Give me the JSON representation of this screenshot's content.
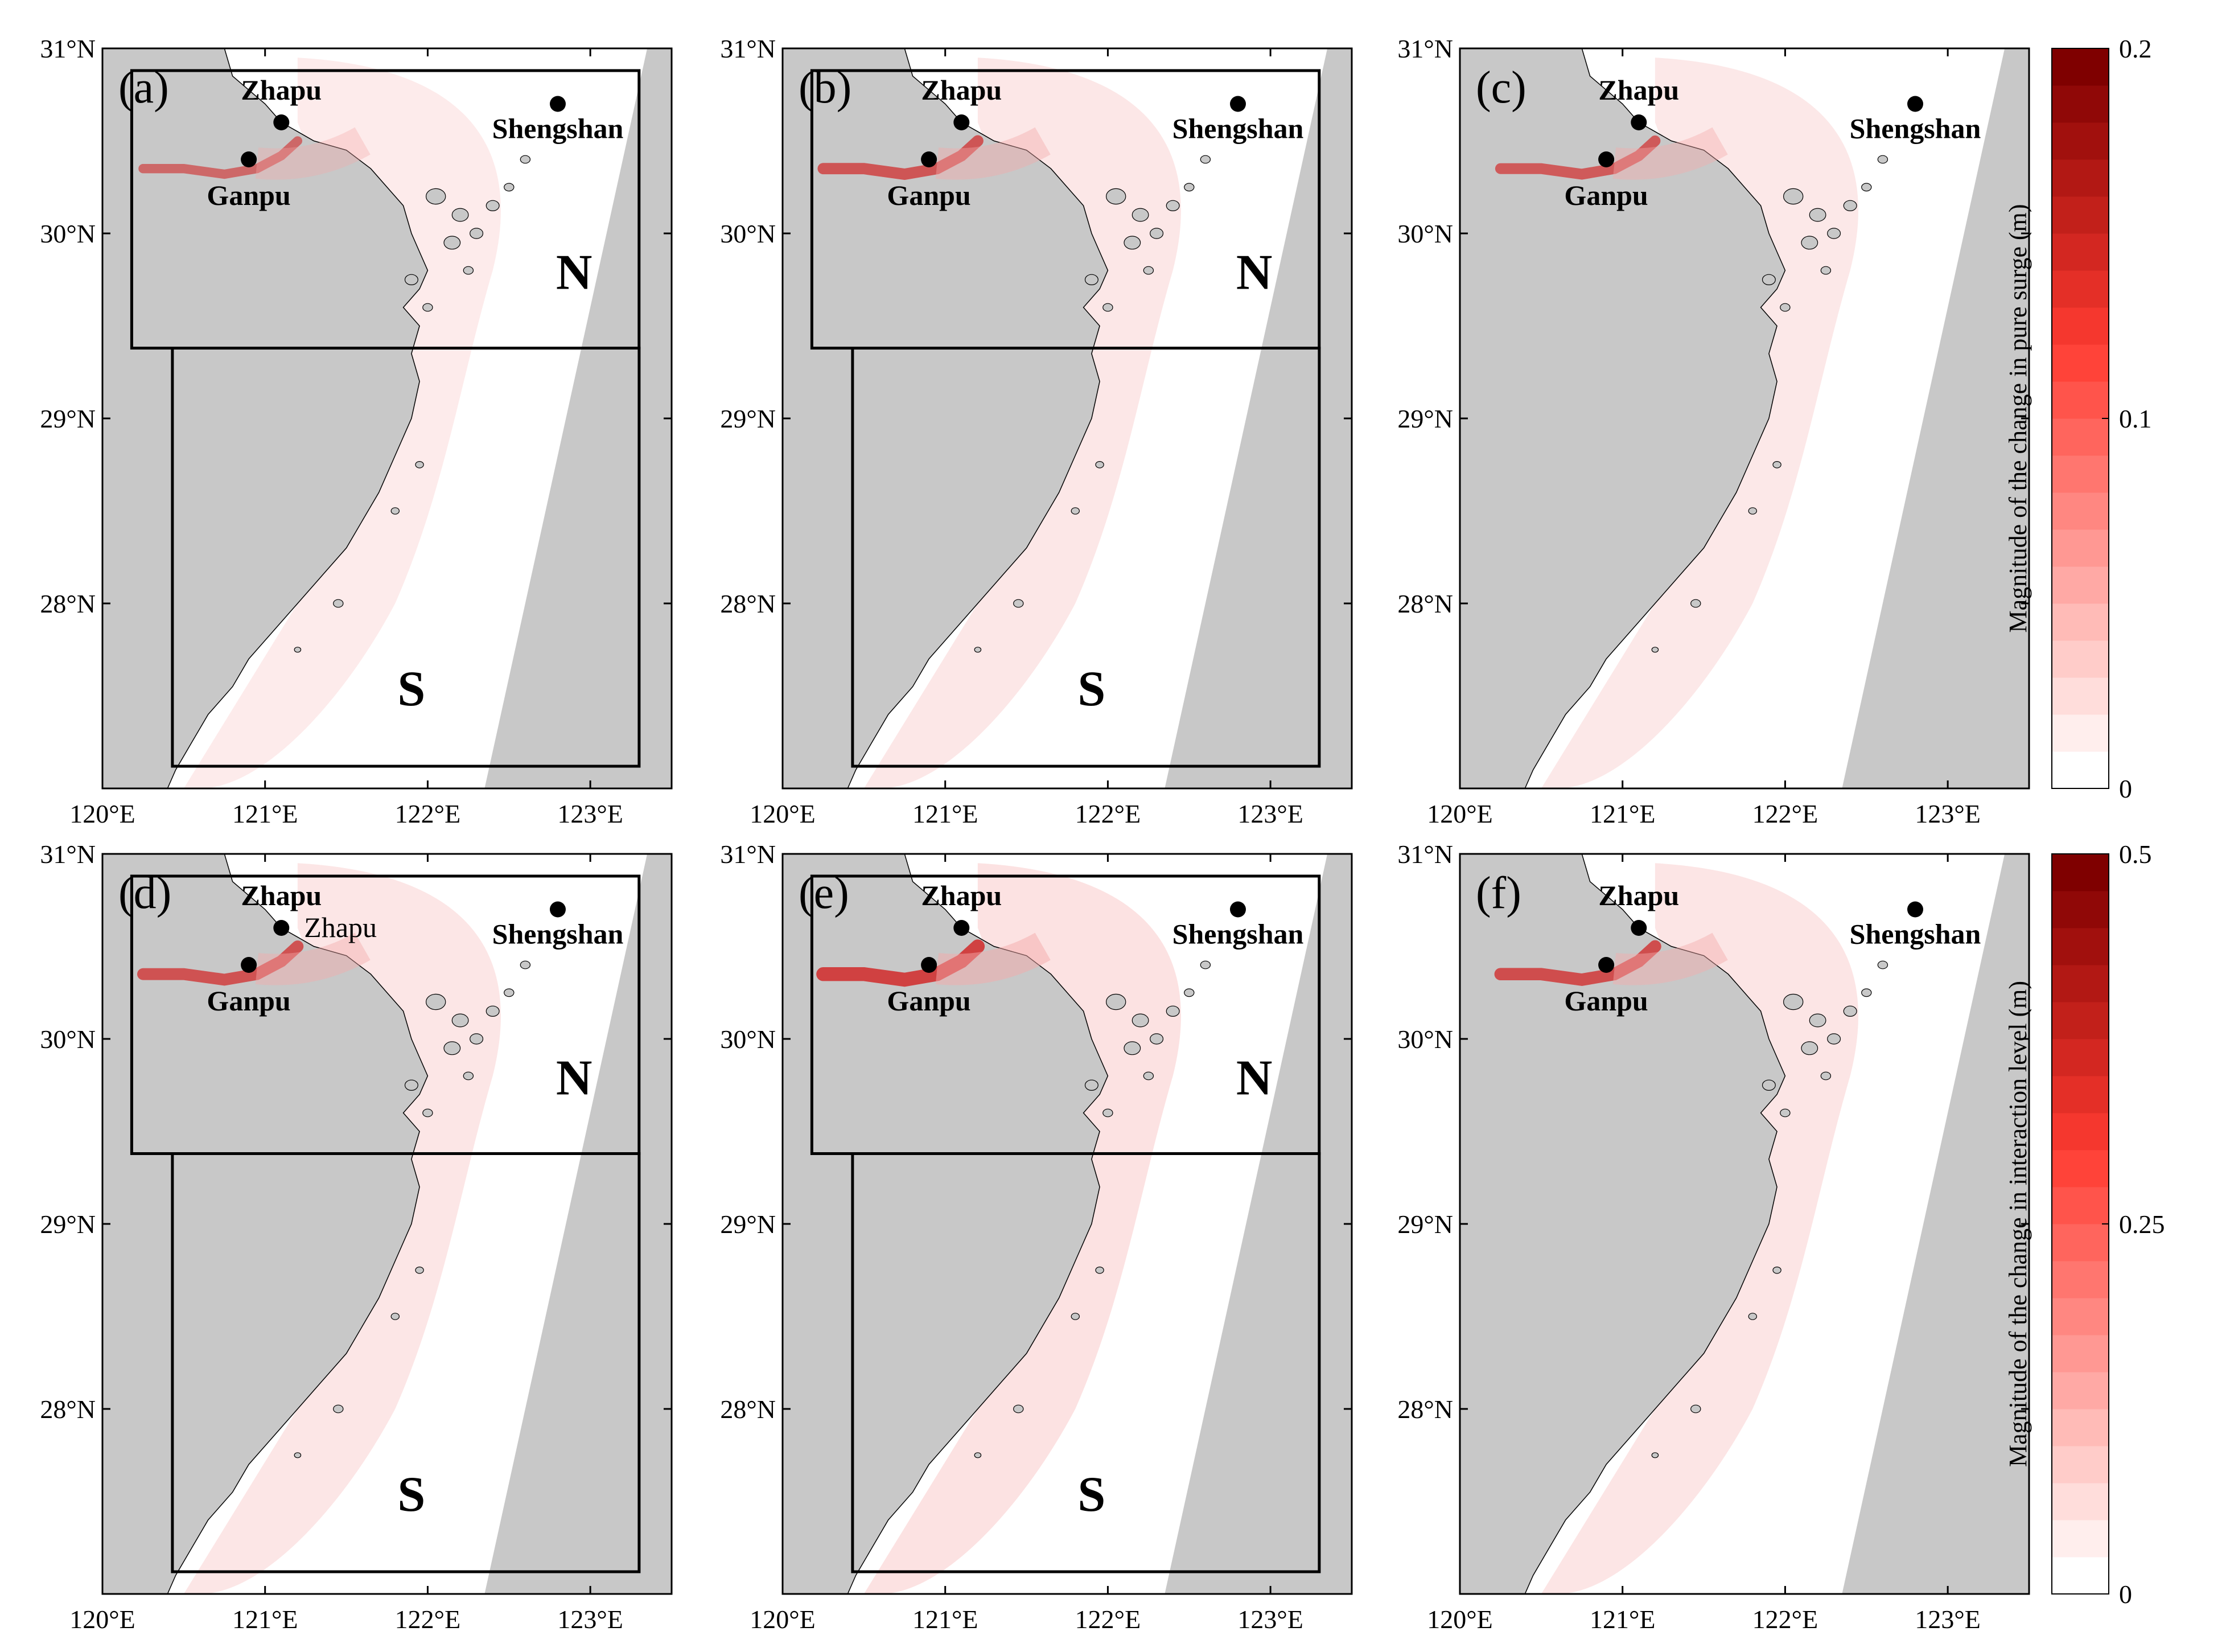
{
  "lon_ticks": [
    "120°E",
    "121°E",
    "122°E",
    "123°E"
  ],
  "lat_ticks": [
    "31°N",
    "30°N",
    "29°N",
    "28°N"
  ],
  "lat_values": [
    31,
    30,
    29,
    28
  ],
  "lon_values": [
    120,
    121,
    122,
    123
  ],
  "map_extent": {
    "lon": [
      120,
      123.5
    ],
    "lat": [
      27,
      31
    ]
  },
  "colors": {
    "land": "#c8c8c8",
    "sea": "#ffffff",
    "low": "#ffffff",
    "high": "#7f0000"
  },
  "stations": {
    "zhapu": {
      "name": "Zhapu",
      "lon": 121.1,
      "lat": 30.6
    },
    "ganpu": {
      "name": "Ganpu",
      "lon": 120.9,
      "lat": 30.4
    },
    "shengshan": {
      "name": "Shengshan",
      "lon": 122.8,
      "lat": 30.7
    }
  },
  "regions": {
    "north": "N",
    "south": "S"
  },
  "panels": [
    {
      "tag": "(a)",
      "boxes": true,
      "extra_label": "",
      "intensity": 0.35
    },
    {
      "tag": "(b)",
      "boxes": true,
      "extra_label": "",
      "intensity": 0.55
    },
    {
      "tag": "(c)",
      "boxes": false,
      "extra_label": "",
      "intensity": 0.5
    },
    {
      "tag": "(d)",
      "boxes": true,
      "extra_label": "Zhapu",
      "intensity": 0.6
    },
    {
      "tag": "(e)",
      "boxes": true,
      "extra_label": "",
      "intensity": 0.8
    },
    {
      "tag": "(f)",
      "boxes": false,
      "extra_label": "",
      "intensity": 0.65
    }
  ],
  "colorbars": [
    {
      "label": "Magnitude of the change in pure surge (m)",
      "ticks": [
        "0.2",
        "0.1",
        "0"
      ],
      "max": 0.2
    },
    {
      "label": "Magnitude of the change in interaction level (m)",
      "ticks": [
        "0.5",
        "0.25",
        "0"
      ],
      "max": 0.5
    }
  ]
}
